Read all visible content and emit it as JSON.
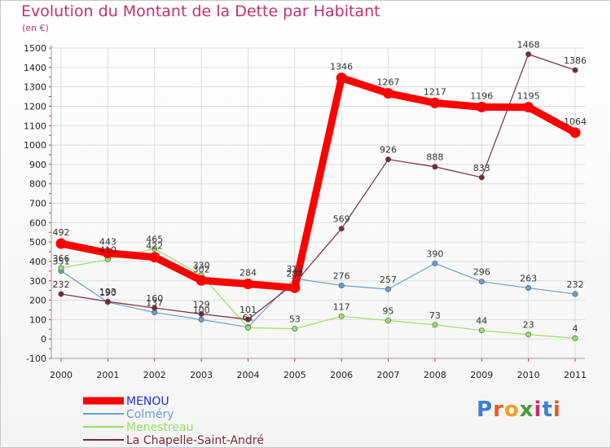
{
  "header": {
    "title": "Evolution du Montant de la Dette par Habitant",
    "subtitle": "(en €)"
  },
  "logo": {
    "text": "Proxiti"
  },
  "colors": {
    "grid": "#dddddd",
    "axis": "#999999",
    "title": "#c03070"
  },
  "chart_data": {
    "type": "line",
    "title": "Evolution du Montant de la Dette par Habitant",
    "subtitle": "(en €)",
    "x": [
      "2000",
      "2001",
      "2002",
      "2003",
      "2004",
      "2005",
      "2006",
      "2007",
      "2008",
      "2009",
      "2010",
      "2011"
    ],
    "ylim": [
      -100,
      1500
    ],
    "yticks": [
      -100,
      0,
      100,
      200,
      300,
      400,
      500,
      600,
      700,
      800,
      900,
      1000,
      1100,
      1200,
      1300,
      1400,
      1500
    ],
    "grid": true,
    "legend_position": "bottom-left",
    "series": [
      {
        "name": "MENOU",
        "color": "#ff0000",
        "text_color": "#2233cc",
        "width": 9,
        "values": [
          492,
          443,
          422,
          302,
          284,
          264,
          1346,
          1267,
          1217,
          1196,
          1195,
          1064
        ],
        "labels": [
          "492",
          "443",
          "422",
          "302",
          "284",
          "",
          "1346",
          "1267",
          "1217",
          "1196",
          "1195",
          "1064"
        ]
      },
      {
        "name": "Colméry",
        "color": "#6b9ccf",
        "text_color": "#6b9ccf",
        "width": 1.2,
        "values": [
          351,
          190,
          137,
          100,
          61,
          312,
          276,
          257,
          390,
          296,
          263,
          232
        ],
        "labels": [
          "351",
          "190",
          "137",
          "100",
          "61",
          "312",
          "276",
          "257",
          "390",
          "296",
          "263",
          "232"
        ]
      },
      {
        "name": "Menestreau",
        "color": "#99dd66",
        "text_color": "#99dd66",
        "width": 1.2,
        "values": [
          366,
          410,
          465,
          330,
          58,
          53,
          117,
          95,
          73,
          44,
          23,
          4
        ],
        "labels": [
          "366",
          "410",
          "465",
          "330",
          "",
          "53",
          "117",
          "95",
          "73",
          "44",
          "23",
          "4"
        ]
      },
      {
        "name": "La Chapelle-Saint-André",
        "color": "#7a2a3a",
        "text_color": "#7a2a3a",
        "width": 1.2,
        "values": [
          232,
          193,
          160,
          129,
          101,
          288,
          569,
          926,
          888,
          833,
          1468,
          1386
        ],
        "labels": [
          "232",
          "193",
          "160",
          "129",
          "101",
          "288",
          "569",
          "926",
          "888",
          "833",
          "1468",
          "1386"
        ]
      }
    ]
  }
}
